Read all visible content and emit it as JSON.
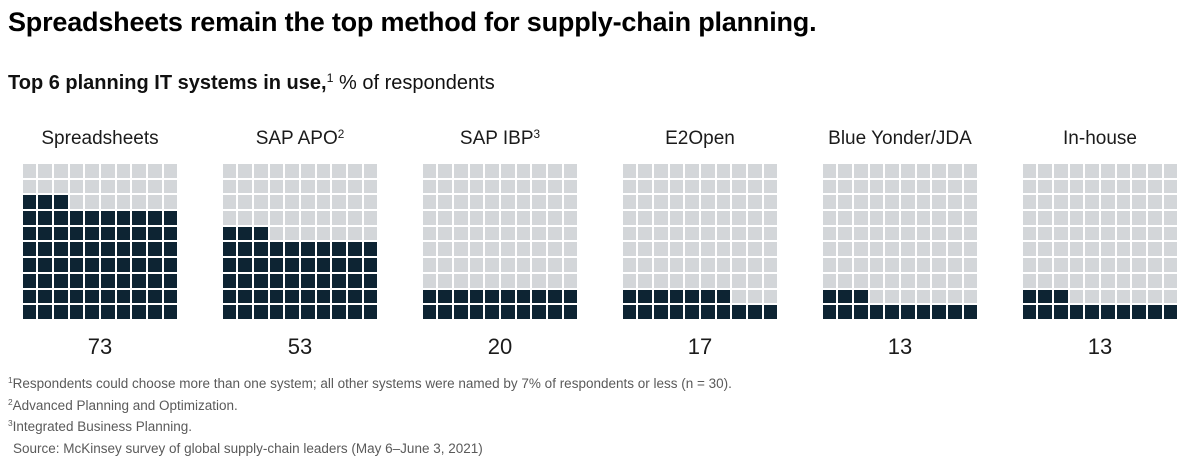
{
  "title": "Spreadsheets remain the top method for supply-chain planning.",
  "subtitle": {
    "bold": "Top 6 planning IT systems in use,",
    "bold_sup": "1",
    "regular": " % of respondents"
  },
  "chart_data": {
    "type": "waffle",
    "title": "Top 6 planning IT systems in use, % of respondents",
    "grid": {
      "rows": 10,
      "cols": 10,
      "cell_value_pct": 1,
      "fill_origin": "bottom-left"
    },
    "categories": [
      "Spreadsheets",
      "SAP APO",
      "SAP IBP",
      "E2Open",
      "Blue Yonder/JDA",
      "In-house"
    ],
    "category_superscripts": [
      "",
      "2",
      "3",
      "",
      "",
      ""
    ],
    "values": [
      73,
      53,
      20,
      17,
      13,
      13
    ],
    "unit": "% of respondents",
    "colors": {
      "filled": "#0d2433",
      "empty": "#d3d6d9"
    }
  },
  "footnotes": [
    {
      "sup": "1",
      "text": "Respondents could choose more than one system; all other systems were named by 7% of respondents or less (n = 30)."
    },
    {
      "sup": "2",
      "text": "Advanced Planning and Optimization."
    },
    {
      "sup": "3",
      "text": "Integrated Business Planning."
    },
    {
      "sup": "",
      "text": "Source: McKinsey survey of global supply-chain leaders (May 6–June 3, 2021)"
    }
  ]
}
